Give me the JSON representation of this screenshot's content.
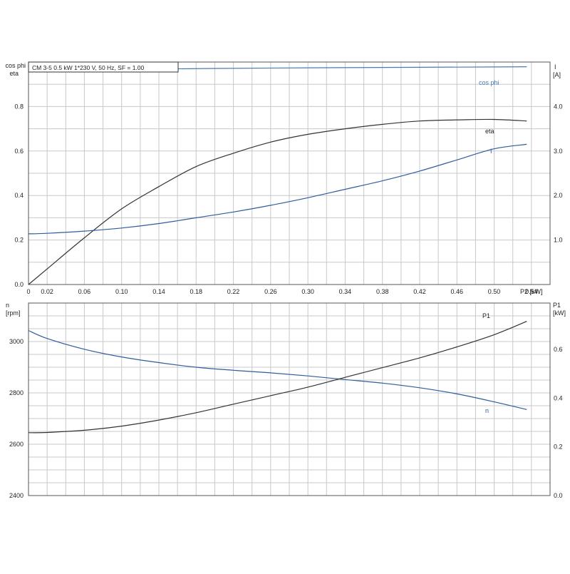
{
  "chart_data": [
    {
      "type": "line",
      "title": "CM 3-5   0.5 kW   1*230 V, 50 Hz, SF = 1.00",
      "xlabel": "P2 [kW]",
      "xlim": [
        0,
        0.56
      ],
      "xticks": [
        "0",
        "0.02",
        "0.06",
        "0.10",
        "0.14",
        "0.18",
        "0.22",
        "0.26",
        "0.30",
        "0.34",
        "0.38",
        "0.42",
        "0.46",
        "0.50",
        "0.54"
      ],
      "left_axis": {
        "label_line1": "cos phi",
        "label_line2": "eta",
        "ylim": [
          0,
          1.0
        ],
        "ticks": [
          "0.0",
          "0.2",
          "0.4",
          "0.6",
          "0.8"
        ]
      },
      "right_axis": {
        "label_line1": "I",
        "label_line2": "[A]",
        "ylim": [
          0,
          5.0
        ],
        "ticks": [
          "1.0",
          "2.0",
          "3.0",
          "4.0"
        ]
      },
      "grid": true,
      "series": [
        {
          "name": "cos phi",
          "axis": "left",
          "color": "#4a7ab5",
          "x": [
            0,
            0.1,
            0.2,
            0.3,
            0.4,
            0.5,
            0.535
          ],
          "y": [
            0.963,
            0.967,
            0.971,
            0.974,
            0.976,
            0.978,
            0.979
          ]
        },
        {
          "name": "eta",
          "axis": "left",
          "color": "#333333",
          "x": [
            0,
            0.02,
            0.06,
            0.1,
            0.14,
            0.18,
            0.22,
            0.26,
            0.3,
            0.34,
            0.38,
            0.42,
            0.46,
            0.5,
            0.535
          ],
          "y": [
            0.0,
            0.07,
            0.21,
            0.34,
            0.44,
            0.53,
            0.59,
            0.64,
            0.675,
            0.7,
            0.72,
            0.735,
            0.74,
            0.742,
            0.735
          ]
        },
        {
          "name": "I",
          "axis": "right",
          "color": "#2f5c9c",
          "x": [
            0,
            0.02,
            0.06,
            0.1,
            0.14,
            0.18,
            0.22,
            0.26,
            0.3,
            0.34,
            0.38,
            0.42,
            0.46,
            0.5,
            0.535
          ],
          "y": [
            1.14,
            1.15,
            1.2,
            1.27,
            1.37,
            1.5,
            1.63,
            1.78,
            1.95,
            2.14,
            2.33,
            2.55,
            2.8,
            3.05,
            3.15
          ]
        }
      ]
    },
    {
      "type": "line",
      "xlim": [
        0,
        0.56
      ],
      "left_axis": {
        "label_line1": "n",
        "label_line2": "[rpm]",
        "ylim": [
          2400,
          3150
        ],
        "ticks": [
          "2400",
          "2600",
          "2800",
          "3000"
        ]
      },
      "right_axis": {
        "label_line1": "P1",
        "label_line2": "[kW]",
        "ylim": [
          0,
          0.79
        ],
        "ticks": [
          "0.0",
          "0.2",
          "0.4",
          "0.6"
        ]
      },
      "grid": true,
      "series": [
        {
          "name": "n",
          "axis": "left",
          "color": "#2f5c9c",
          "x": [
            0,
            0.02,
            0.06,
            0.1,
            0.14,
            0.18,
            0.22,
            0.26,
            0.3,
            0.34,
            0.38,
            0.42,
            0.46,
            0.5,
            0.535
          ],
          "y": [
            3043,
            3012,
            2970,
            2940,
            2918,
            2900,
            2888,
            2878,
            2866,
            2852,
            2838,
            2820,
            2796,
            2765,
            2735
          ]
        },
        {
          "name": "P1",
          "axis": "right",
          "color": "#333333",
          "x": [
            0,
            0.02,
            0.06,
            0.1,
            0.14,
            0.18,
            0.22,
            0.26,
            0.3,
            0.34,
            0.38,
            0.42,
            0.46,
            0.5,
            0.535
          ],
          "y": [
            0.258,
            0.259,
            0.268,
            0.285,
            0.31,
            0.34,
            0.375,
            0.41,
            0.445,
            0.485,
            0.525,
            0.565,
            0.61,
            0.66,
            0.715
          ]
        }
      ]
    }
  ]
}
